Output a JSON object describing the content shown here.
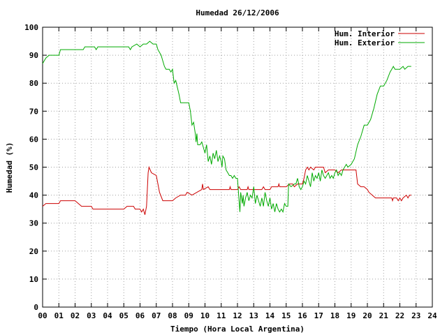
{
  "chart_data": {
    "type": "line",
    "title": "Humedad 26/12/2006",
    "xlabel": "Tiempo (Hora Local Argentina)",
    "ylabel": "Humedad (%)",
    "xlim": [
      0,
      24
    ],
    "ylim": [
      0,
      100
    ],
    "x_ticks": [
      "00",
      "01",
      "02",
      "03",
      "04",
      "05",
      "06",
      "07",
      "08",
      "09",
      "10",
      "11",
      "12",
      "13",
      "14",
      "15",
      "16",
      "17",
      "18",
      "19",
      "20",
      "21",
      "22",
      "23",
      "24"
    ],
    "y_ticks": [
      "0",
      "10",
      "20",
      "30",
      "40",
      "50",
      "60",
      "70",
      "80",
      "90",
      "100"
    ],
    "grid": true,
    "legend_position": "top-right",
    "series": [
      {
        "name": "Hum. Interior",
        "color": "#cc0000",
        "points": [
          [
            0,
            36
          ],
          [
            0.2,
            37
          ],
          [
            1.0,
            37
          ],
          [
            1.1,
            38
          ],
          [
            2.0,
            38
          ],
          [
            2.2,
            37
          ],
          [
            2.4,
            36
          ],
          [
            3.0,
            36
          ],
          [
            3.1,
            35
          ],
          [
            5.0,
            35
          ],
          [
            5.2,
            36
          ],
          [
            5.6,
            36
          ],
          [
            5.7,
            35
          ],
          [
            6.0,
            35
          ],
          [
            6.1,
            34
          ],
          [
            6.2,
            35
          ],
          [
            6.3,
            33
          ],
          [
            6.4,
            36
          ],
          [
            6.5,
            48
          ],
          [
            6.55,
            50
          ],
          [
            6.7,
            48
          ],
          [
            7.0,
            47
          ],
          [
            7.2,
            41
          ],
          [
            7.4,
            38
          ],
          [
            8.0,
            38
          ],
          [
            8.2,
            39
          ],
          [
            8.5,
            40
          ],
          [
            8.8,
            40
          ],
          [
            8.9,
            41
          ],
          [
            9.2,
            40
          ],
          [
            9.5,
            41
          ],
          [
            9.8,
            42
          ],
          [
            9.85,
            44
          ],
          [
            9.9,
            42
          ],
          [
            10.2,
            43
          ],
          [
            10.3,
            42
          ],
          [
            11.0,
            42
          ],
          [
            11.5,
            42
          ],
          [
            11.55,
            43
          ],
          [
            11.6,
            42
          ],
          [
            12.0,
            42
          ],
          [
            12.1,
            43
          ],
          [
            12.2,
            42
          ],
          [
            12.6,
            42
          ],
          [
            12.65,
            43
          ],
          [
            12.7,
            42
          ],
          [
            13.5,
            42
          ],
          [
            13.6,
            43
          ],
          [
            13.7,
            42
          ],
          [
            14.0,
            42
          ],
          [
            14.1,
            43
          ],
          [
            14.5,
            43
          ],
          [
            14.55,
            44
          ],
          [
            14.6,
            43
          ],
          [
            15.0,
            43
          ],
          [
            15.2,
            44
          ],
          [
            15.4,
            44
          ],
          [
            15.5,
            43
          ],
          [
            15.7,
            44
          ],
          [
            16.0,
            44
          ],
          [
            16.1,
            46
          ],
          [
            16.2,
            49
          ],
          [
            16.3,
            50
          ],
          [
            16.4,
            49
          ],
          [
            16.5,
            50
          ],
          [
            16.7,
            49
          ],
          [
            16.8,
            50
          ],
          [
            17.0,
            50
          ],
          [
            17.3,
            50
          ],
          [
            17.4,
            48
          ],
          [
            17.6,
            49
          ],
          [
            18.0,
            49
          ],
          [
            18.2,
            48
          ],
          [
            18.4,
            49
          ],
          [
            18.6,
            49
          ],
          [
            18.8,
            49
          ],
          [
            19.0,
            49
          ],
          [
            19.3,
            49
          ],
          [
            19.4,
            44
          ],
          [
            19.6,
            43
          ],
          [
            19.8,
            43
          ],
          [
            20.0,
            42
          ],
          [
            20.1,
            41
          ],
          [
            20.3,
            40
          ],
          [
            20.5,
            39
          ],
          [
            21.0,
            39
          ],
          [
            21.5,
            39
          ],
          [
            21.55,
            38
          ],
          [
            21.6,
            39
          ],
          [
            21.8,
            39
          ],
          [
            21.9,
            38
          ],
          [
            22.0,
            39
          ],
          [
            22.1,
            38
          ],
          [
            22.2,
            39
          ],
          [
            22.4,
            40
          ],
          [
            22.5,
            39
          ],
          [
            22.6,
            40
          ],
          [
            22.7,
            40
          ]
        ]
      },
      {
        "name": "Hum. Exterior",
        "color": "#00aa00",
        "points": [
          [
            0,
            87
          ],
          [
            0.1,
            88
          ],
          [
            0.2,
            89
          ],
          [
            0.4,
            90
          ],
          [
            1.0,
            90
          ],
          [
            1.1,
            92
          ],
          [
            2.0,
            92
          ],
          [
            2.5,
            92
          ],
          [
            2.6,
            93
          ],
          [
            3.0,
            93
          ],
          [
            3.2,
            93
          ],
          [
            3.3,
            92
          ],
          [
            3.4,
            93
          ],
          [
            4.0,
            93
          ],
          [
            5.0,
            93
          ],
          [
            5.3,
            93
          ],
          [
            5.4,
            92
          ],
          [
            5.5,
            93
          ],
          [
            5.8,
            94
          ],
          [
            6.0,
            93
          ],
          [
            6.2,
            94
          ],
          [
            6.4,
            94
          ],
          [
            6.6,
            95
          ],
          [
            6.8,
            94
          ],
          [
            7.0,
            94
          ],
          [
            7.1,
            92
          ],
          [
            7.3,
            90
          ],
          [
            7.5,
            86
          ],
          [
            7.6,
            85
          ],
          [
            7.8,
            85
          ],
          [
            7.9,
            84
          ],
          [
            8.0,
            85
          ],
          [
            8.1,
            80
          ],
          [
            8.2,
            81
          ],
          [
            8.4,
            76
          ],
          [
            8.5,
            73
          ],
          [
            9.0,
            73
          ],
          [
            9.1,
            70
          ],
          [
            9.2,
            65
          ],
          [
            9.3,
            66
          ],
          [
            9.4,
            62
          ],
          [
            9.45,
            59
          ],
          [
            9.5,
            62
          ],
          [
            9.55,
            58
          ],
          [
            9.7,
            58
          ],
          [
            9.8,
            59
          ],
          [
            9.9,
            57
          ],
          [
            10.0,
            55
          ],
          [
            10.1,
            58
          ],
          [
            10.2,
            52
          ],
          [
            10.3,
            54
          ],
          [
            10.4,
            51
          ],
          [
            10.5,
            55
          ],
          [
            10.6,
            53
          ],
          [
            10.7,
            56
          ],
          [
            10.8,
            52
          ],
          [
            10.9,
            54
          ],
          [
            11.0,
            52
          ],
          [
            11.05,
            50
          ],
          [
            11.1,
            54
          ],
          [
            11.2,
            53
          ],
          [
            11.3,
            49
          ],
          [
            11.4,
            48
          ],
          [
            11.5,
            47
          ],
          [
            11.6,
            47
          ],
          [
            11.7,
            46
          ],
          [
            11.8,
            47
          ],
          [
            11.9,
            46
          ],
          [
            12.0,
            46
          ],
          [
            12.1,
            38
          ],
          [
            12.15,
            34
          ],
          [
            12.2,
            41
          ],
          [
            12.3,
            37
          ],
          [
            12.35,
            40
          ],
          [
            12.4,
            36
          ],
          [
            12.5,
            39
          ],
          [
            12.6,
            41
          ],
          [
            12.7,
            38
          ],
          [
            12.8,
            40
          ],
          [
            12.9,
            39
          ],
          [
            13.0,
            43
          ],
          [
            13.1,
            37
          ],
          [
            13.2,
            40
          ],
          [
            13.3,
            38
          ],
          [
            13.4,
            36
          ],
          [
            13.5,
            39
          ],
          [
            13.6,
            36
          ],
          [
            13.7,
            41
          ],
          [
            13.8,
            38
          ],
          [
            13.9,
            36
          ],
          [
            14.0,
            39
          ],
          [
            14.1,
            35
          ],
          [
            14.2,
            37
          ],
          [
            14.3,
            34
          ],
          [
            14.4,
            37
          ],
          [
            14.5,
            35
          ],
          [
            14.6,
            34
          ],
          [
            14.7,
            35
          ],
          [
            14.8,
            34
          ],
          [
            14.9,
            37
          ],
          [
            15.0,
            36
          ],
          [
            15.1,
            36
          ],
          [
            15.15,
            44
          ],
          [
            15.3,
            43
          ],
          [
            15.5,
            44
          ],
          [
            15.6,
            44
          ],
          [
            15.7,
            46
          ],
          [
            15.8,
            43
          ],
          [
            15.9,
            42
          ],
          [
            16.0,
            43
          ],
          [
            16.1,
            45
          ],
          [
            16.2,
            44
          ],
          [
            16.3,
            47
          ],
          [
            16.4,
            45
          ],
          [
            16.5,
            43
          ],
          [
            16.6,
            48
          ],
          [
            16.7,
            45
          ],
          [
            16.8,
            47
          ],
          [
            16.9,
            46
          ],
          [
            17.0,
            48
          ],
          [
            17.1,
            45
          ],
          [
            17.2,
            49
          ],
          [
            17.3,
            47
          ],
          [
            17.4,
            46
          ],
          [
            17.5,
            47
          ],
          [
            17.6,
            48
          ],
          [
            17.7,
            46
          ],
          [
            17.8,
            47
          ],
          [
            17.9,
            46
          ],
          [
            18.0,
            48
          ],
          [
            18.1,
            49
          ],
          [
            18.2,
            47
          ],
          [
            18.3,
            48
          ],
          [
            18.4,
            47
          ],
          [
            18.5,
            49
          ],
          [
            18.6,
            50
          ],
          [
            18.7,
            51
          ],
          [
            18.8,
            50
          ],
          [
            19.0,
            51
          ],
          [
            19.2,
            53
          ],
          [
            19.4,
            58
          ],
          [
            19.6,
            61
          ],
          [
            19.8,
            65
          ],
          [
            20.0,
            65
          ],
          [
            20.2,
            67
          ],
          [
            20.4,
            71
          ],
          [
            20.6,
            76
          ],
          [
            20.8,
            79
          ],
          [
            21.0,
            79
          ],
          [
            21.2,
            81
          ],
          [
            21.4,
            84
          ],
          [
            21.5,
            85
          ],
          [
            21.6,
            86
          ],
          [
            21.7,
            85
          ],
          [
            22.0,
            85
          ],
          [
            22.2,
            86
          ],
          [
            22.3,
            85
          ],
          [
            22.5,
            86
          ],
          [
            22.7,
            86
          ]
        ]
      }
    ]
  }
}
